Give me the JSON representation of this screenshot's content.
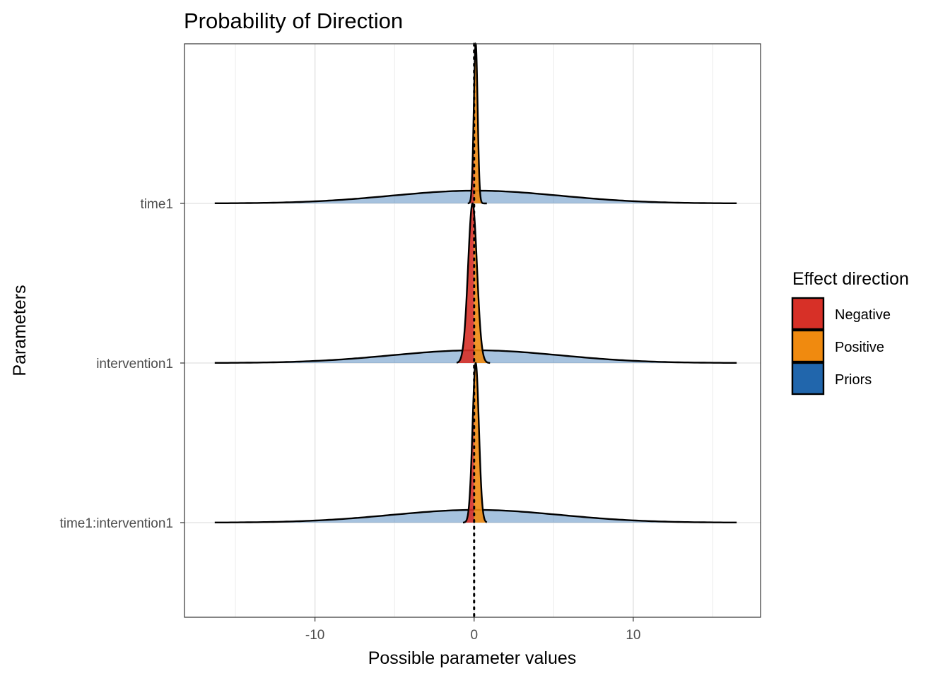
{
  "chart_data": {
    "type": "area",
    "title": "Probability of Direction",
    "xlabel": "Possible parameter values",
    "ylabel": "Parameters",
    "xlim": [
      -18.2,
      18.0
    ],
    "x_ticks": [
      -10,
      0,
      10
    ],
    "x_tick_labels": [
      "-10",
      "0",
      "10"
    ],
    "grid": true,
    "reference_line_x": 0,
    "categories": [
      "time1",
      "intervention1",
      "time1:intervention1"
    ],
    "series": [
      {
        "name": "Priors",
        "color": "#2166ac",
        "values": [
          {
            "parameter": "time1",
            "mean": 0.1,
            "sd": 5.3,
            "from": -16.3,
            "to": 16.5
          },
          {
            "parameter": "intervention1",
            "mean": 0.1,
            "sd": 5.3,
            "from": -16.3,
            "to": 16.5
          },
          {
            "parameter": "time1:intervention1",
            "mean": 0.1,
            "sd": 5.3,
            "from": -16.3,
            "to": 16.5
          }
        ]
      },
      {
        "name": "Negative",
        "color": "#d73027",
        "posterior_below": 0
      },
      {
        "name": "Positive",
        "color": "#f08a0f",
        "posterior_above": 0
      }
    ],
    "posteriors": [
      {
        "parameter": "time1",
        "mean": 0.1,
        "sd": 0.12,
        "from": -0.4,
        "to": 0.8
      },
      {
        "parameter": "intervention1",
        "mean": -0.1,
        "sd": 0.28,
        "from": -1.1,
        "to": 1.0
      },
      {
        "parameter": "time1:intervention1",
        "mean": 0.1,
        "sd": 0.2,
        "from": -0.7,
        "to": 0.8
      }
    ],
    "legend": {
      "title": "Effect direction",
      "position": "right",
      "items": [
        {
          "label": "Negative",
          "color": "#d73027"
        },
        {
          "label": "Positive",
          "color": "#f08a0f"
        },
        {
          "label": "Priors",
          "color": "#2166ac"
        }
      ]
    }
  }
}
